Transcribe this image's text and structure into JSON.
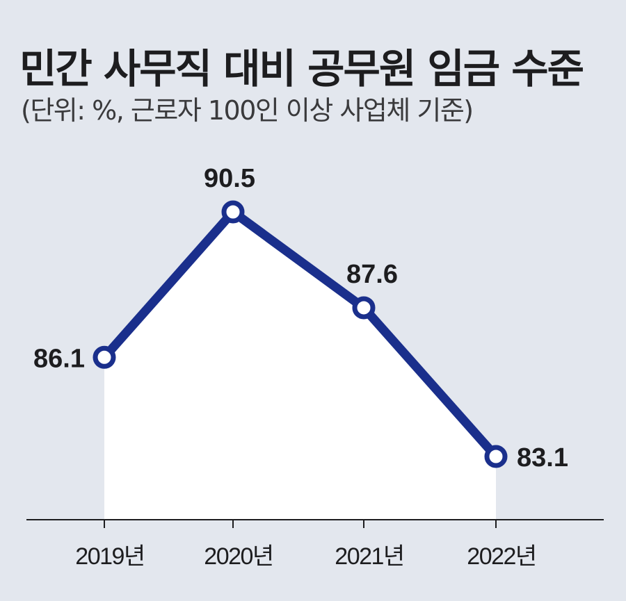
{
  "header": {
    "title": "민간 사무직 대비 공무원 임금 수준",
    "subtitle": "(단위: %, 근로자 100인 이상 사업체 기준)"
  },
  "chart_data": {
    "type": "line",
    "title": "민간 사무직 대비 공무원 임금 수준",
    "subtitle": "(단위: %, 근로자 100인 이상 사업체 기준)",
    "categories": [
      "2019년",
      "2020년",
      "2021년",
      "2022년"
    ],
    "series": [
      {
        "values": [
          86.1,
          90.5,
          87.6,
          83.1
        ]
      }
    ],
    "labels": [
      "86.1",
      "90.5",
      "87.6",
      "83.1"
    ],
    "xlabel": "",
    "ylabel": "",
    "grid": false,
    "legend": "none",
    "colors": {
      "line": "#1a2f8c",
      "marker_fill": "#ffffff",
      "area": "#ffffff",
      "background": "#e3e7ee",
      "axis": "#1d1d1f"
    }
  }
}
